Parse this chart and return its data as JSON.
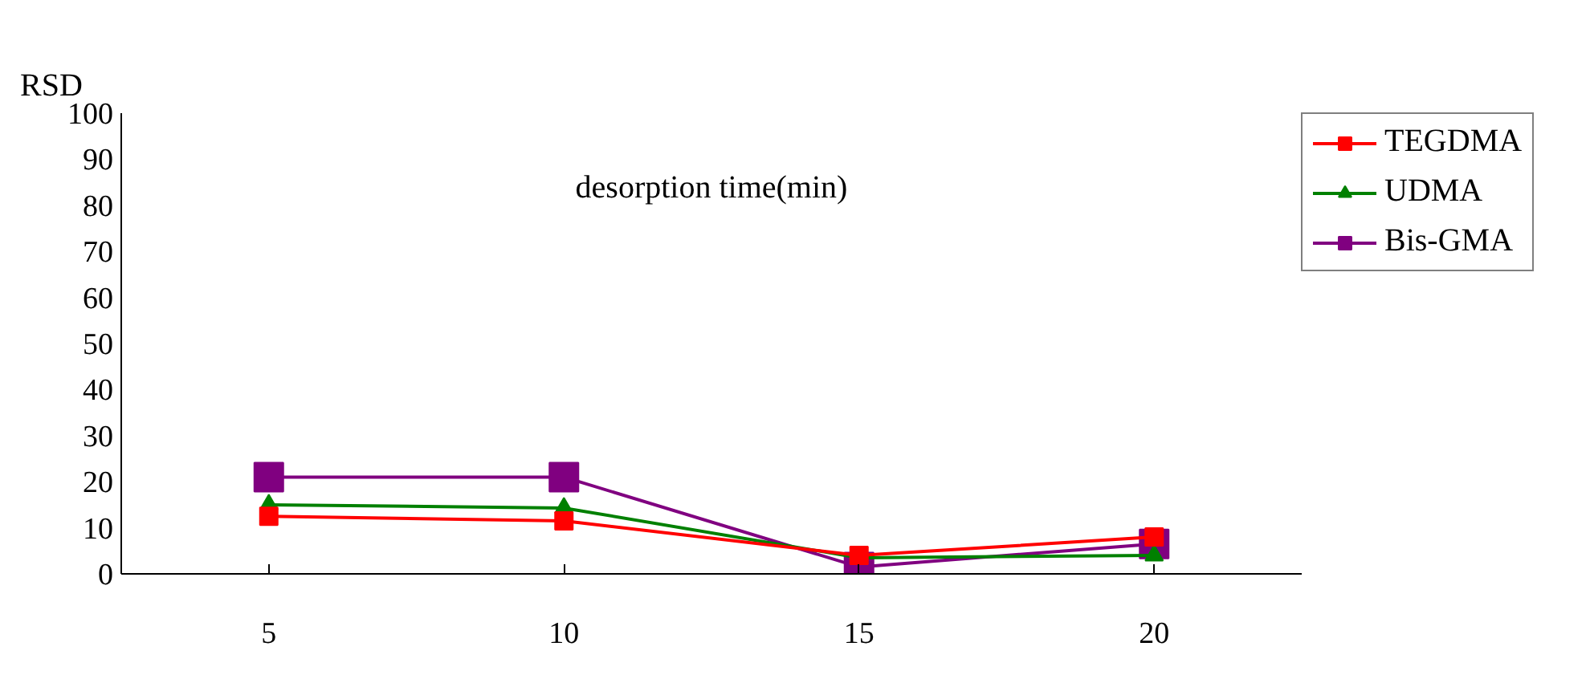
{
  "chart_data": {
    "type": "line",
    "xlabel": "desorption time(min)",
    "ylabel": "RSD",
    "categories": [
      "5",
      "10",
      "15",
      "20"
    ],
    "series": [
      {
        "name": "TEGDMA",
        "color": "#ff0000",
        "marker": "square",
        "values": [
          12.5,
          11.5,
          4,
          8
        ]
      },
      {
        "name": "UDMA",
        "color": "#008000",
        "marker": "triangle",
        "values": [
          15,
          14.3,
          3.5,
          4
        ]
      },
      {
        "name": "Bis-GMA",
        "color": "#800080",
        "marker": "square",
        "values": [
          21,
          21,
          1.5,
          6.5
        ]
      }
    ],
    "ylim": [
      0,
      100
    ],
    "yticks": [
      0,
      10,
      20,
      30,
      40,
      50,
      60,
      70,
      80,
      90,
      100
    ],
    "grid": false,
    "legend": "top right"
  }
}
